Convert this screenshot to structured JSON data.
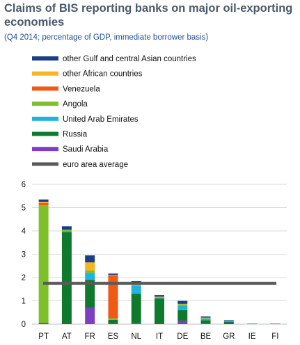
{
  "chart_data": {
    "type": "bar",
    "stacked": true,
    "title": "Claims of BIS reporting banks on major oil-exporting economies",
    "subtitle": "(Q4 2014; percentage of GDP, immediate borrower basis)",
    "xlabel": "",
    "ylabel": "",
    "ylim": [
      0,
      6
    ],
    "yticks": [
      0,
      1,
      2,
      3,
      4,
      5,
      6
    ],
    "grid": true,
    "legend_position": "top-left",
    "categories": [
      "PT",
      "AT",
      "FR",
      "ES",
      "NL",
      "IT",
      "DE",
      "BE",
      "GR",
      "IE",
      "FI"
    ],
    "series": [
      {
        "name": "Saudi Arabia",
        "color": "#7b3fbf",
        "values": [
          0,
          0,
          0.7,
          0.03,
          0.05,
          0,
          0.15,
          0.02,
          0,
          0,
          0
        ]
      },
      {
        "name": "Russia",
        "color": "#0f7a2e",
        "values": [
          0.05,
          3.95,
          1.2,
          0.15,
          1.25,
          1.1,
          0.45,
          0.15,
          0.1,
          0,
          0.02
        ]
      },
      {
        "name": "United Arab Emirates",
        "color": "#1fb4e0",
        "values": [
          0,
          0.05,
          0.3,
          0.02,
          0.35,
          0.05,
          0.2,
          0.07,
          0.05,
          0.03,
          0
        ]
      },
      {
        "name": "Angola",
        "color": "#7fbf2a",
        "values": [
          5.05,
          0.05,
          0.1,
          0.05,
          0.05,
          0,
          0.05,
          0.02,
          0,
          0,
          0
        ]
      },
      {
        "name": "Venezuela",
        "color": "#f05a14",
        "values": [
          0.1,
          0,
          0,
          1.85,
          0,
          0,
          0,
          0,
          0,
          0,
          0
        ]
      },
      {
        "name": "other African countries",
        "color": "#f8b51e",
        "values": [
          0.05,
          0,
          0.35,
          0.02,
          0,
          0.03,
          0.02,
          0.02,
          0,
          0,
          0
        ]
      },
      {
        "name": "other Gulf and central Asian countries",
        "color": "#1c3d86",
        "values": [
          0.1,
          0.15,
          0.3,
          0.05,
          0.15,
          0.07,
          0.13,
          0.05,
          0.02,
          0,
          0
        ]
      }
    ],
    "reference_line": {
      "name": "euro area average",
      "value": 1.75,
      "color": "#5a5a5a"
    }
  }
}
